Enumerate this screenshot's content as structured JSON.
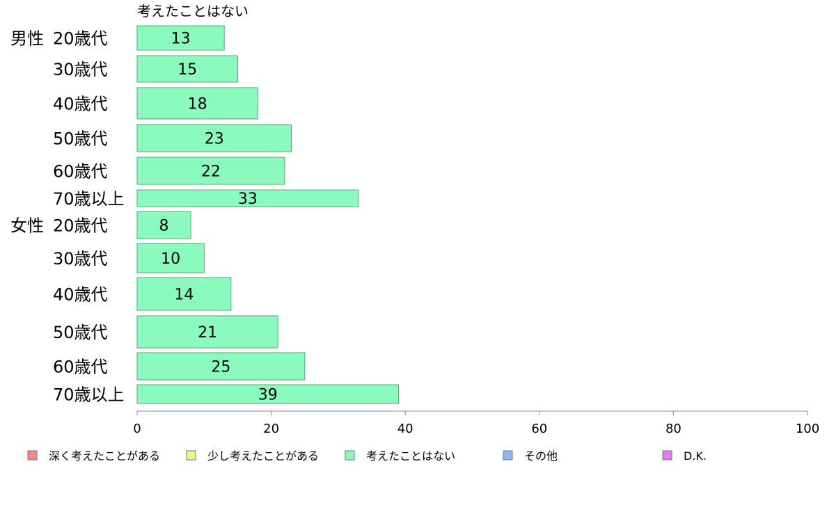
{
  "chart_data": {
    "type": "bar",
    "orientation": "horizontal",
    "stacked": true,
    "series_title": "考えたことはない",
    "groups": [
      {
        "label": "男性",
        "categories": [
          "20歳代",
          "30歳代",
          "40歳代",
          "50歳代",
          "60歳代",
          "70歳以上"
        ],
        "values": [
          13,
          15,
          18,
          23,
          22,
          33
        ]
      },
      {
        "label": "女性",
        "categories": [
          "20歳代",
          "30歳代",
          "40歳代",
          "50歳代",
          "60歳代",
          "70歳以上"
        ],
        "values": [
          8,
          10,
          14,
          21,
          25,
          39
        ]
      }
    ],
    "shown_series": "考えたことはない",
    "xlim": [
      0,
      100
    ],
    "xticks": [
      0,
      20,
      40,
      60,
      80,
      100
    ],
    "legend": {
      "placement": "bottom",
      "items": [
        {
          "name": "深く考えたことがある",
          "color": "#f4898b"
        },
        {
          "name": "少し考えたことがある",
          "color": "#eef48a"
        },
        {
          "name": "考えたことはない",
          "color": "#8afbbc"
        },
        {
          "name": "その他",
          "color": "#8ab6f4"
        },
        {
          "name": "D.K.",
          "color": "#e77af0"
        }
      ]
    },
    "bar_color": "#8afbbc",
    "bar_border_color": "#5aa57e",
    "grid": false
  }
}
